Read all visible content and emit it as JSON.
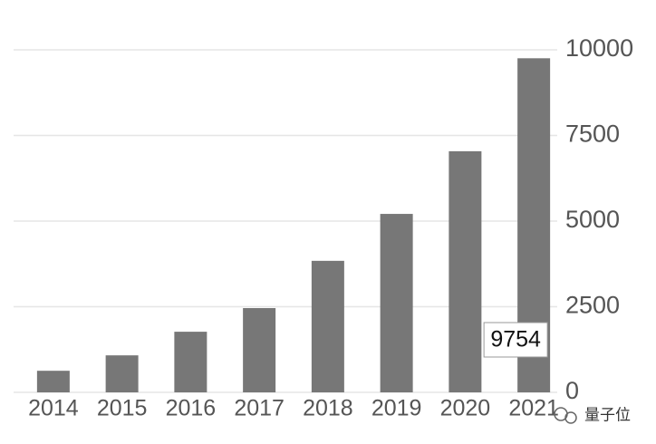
{
  "chart_data": {
    "type": "bar",
    "categories": [
      "2014",
      "2015",
      "2016",
      "2017",
      "2018",
      "2019",
      "2020",
      "2021"
    ],
    "values": [
      630,
      1080,
      1770,
      2460,
      3840,
      5210,
      7040,
      9754
    ],
    "color": "#777777",
    "ylim": [
      0,
      10000
    ],
    "yticks": [
      0,
      2500,
      5000,
      7500,
      10000
    ],
    "grid": true,
    "watermark": "量子位"
  }
}
